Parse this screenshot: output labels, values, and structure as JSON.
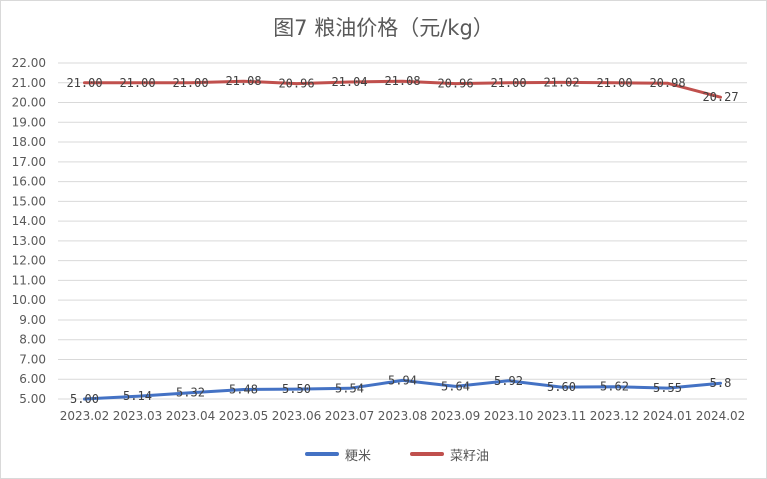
{
  "chart_data": {
    "type": "line",
    "title": "图7  粮油价格（元/kg）",
    "categories": [
      "2023.02",
      "2023.03",
      "2023.04",
      "2023.05",
      "2023.06",
      "2023.07",
      "2023.08",
      "2023.09",
      "2023.10",
      "2023.11",
      "2023.12",
      "2024.01",
      "2024.02"
    ],
    "ylim": [
      5.0,
      22.0
    ],
    "ytick_step": 1.0,
    "y_tick_labels": [
      "5.00",
      "6.00",
      "7.00",
      "8.00",
      "9.00",
      "10.00",
      "11.00",
      "12.00",
      "13.00",
      "14.00",
      "15.00",
      "16.00",
      "17.00",
      "18.00",
      "19.00",
      "20.00",
      "21.00",
      "22.00"
    ],
    "grid": true,
    "legend_position": "bottom",
    "series": [
      {
        "name": "粳米",
        "color": "#4472c4",
        "values": [
          5.0,
          5.14,
          5.32,
          5.48,
          5.5,
          5.54,
          5.94,
          5.64,
          5.92,
          5.6,
          5.62,
          5.55,
          5.8
        ],
        "labels": [
          "5.00",
          "5.14",
          "5.32",
          "5.48",
          "5.50",
          "5.54",
          "5.94",
          "5.64",
          "5.92",
          "5.60",
          "5.62",
          "5.55",
          "5.8"
        ]
      },
      {
        "name": "菜籽油",
        "color": "#c0504d",
        "values": [
          21.0,
          21.0,
          21.0,
          21.08,
          20.96,
          21.04,
          21.08,
          20.96,
          21.0,
          21.02,
          21.0,
          20.98,
          20.27
        ],
        "labels": [
          "21.00",
          "21.00",
          "21.00",
          "21.08",
          "20.96",
          "21.04",
          "21.08",
          "20.96",
          "21.00",
          "21.02",
          "21.00",
          "20.98",
          "20.27"
        ]
      }
    ]
  }
}
